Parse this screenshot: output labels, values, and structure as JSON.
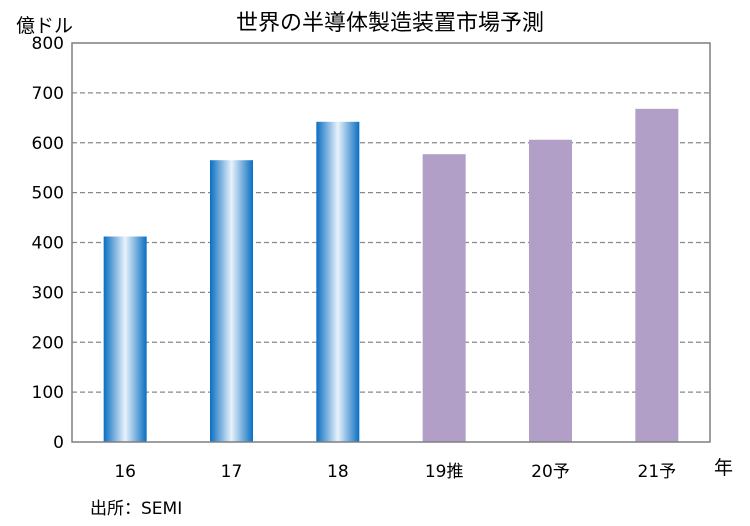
{
  "chart_data": {
    "type": "bar",
    "title": "世界の半導体製造装置市場予測",
    "ylabel": "億ドル",
    "xlabel": "年",
    "categories": [
      "16",
      "17",
      "18",
      "19推",
      "20予",
      "21予"
    ],
    "values": [
      412,
      565,
      642,
      577,
      606,
      668
    ],
    "kind": [
      "actual",
      "actual",
      "actual",
      "forecast",
      "forecast",
      "forecast"
    ],
    "ylim": [
      0,
      800
    ],
    "yticks": [
      "0",
      "100",
      "200",
      "300",
      "400",
      "500",
      "600",
      "700",
      "800"
    ],
    "grid": true,
    "colors": {
      "actual_edge": "#0a6fc2",
      "actual_center": "#e8f2fb",
      "forecast": "#b19fc8",
      "grid": "#888888",
      "axis": "#7f7f7f"
    }
  },
  "source_note": "出所：SEMI"
}
